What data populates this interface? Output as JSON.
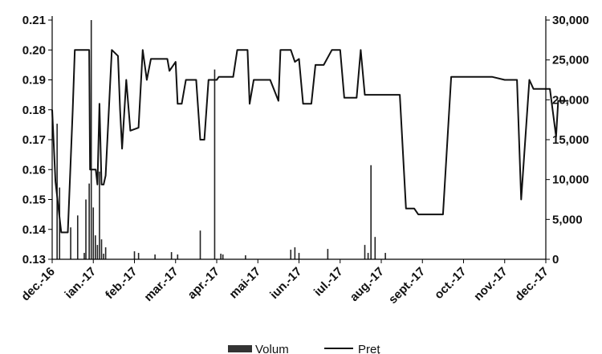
{
  "chart_data": {
    "type": "bar+line",
    "categories": [
      "dec.-16",
      "ian.-17",
      "feb.-17",
      "mar.-17",
      "apr.-17",
      "mai-17",
      "iun.-17",
      "iul.-17",
      "aug.-17",
      "sept.-17",
      "oct.-17",
      "nov.-17",
      "dec.-17"
    ],
    "y_left_ticks": [
      "0.21",
      "0.20",
      "0.19",
      "0.18",
      "0.17",
      "0.16",
      "0.15",
      "0.14",
      "0.13"
    ],
    "y_right_ticks": [
      "30,000",
      "25,000",
      "20,000",
      "15,000",
      "10,000",
      "5,000",
      "0"
    ],
    "ylim_left": [
      0.13,
      0.21
    ],
    "ylim_right": [
      0,
      30000
    ],
    "legend_position": "bottom",
    "colors": {
      "line": "#111111",
      "bars": "#222222",
      "axis": "#000000"
    },
    "series": [
      {
        "name": "Volum",
        "axis": "right",
        "kind": "bar",
        "points": [
          [
            0.12,
            17000
          ],
          [
            0.18,
            9000
          ],
          [
            0.45,
            4000
          ],
          [
            0.62,
            5500
          ],
          [
            0.78,
            800
          ],
          [
            0.82,
            7500
          ],
          [
            0.9,
            9500
          ],
          [
            0.95,
            30000
          ],
          [
            1.0,
            6500
          ],
          [
            1.05,
            3000
          ],
          [
            1.1,
            1800
          ],
          [
            1.15,
            11000
          ],
          [
            1.2,
            2500
          ],
          [
            1.25,
            700
          ],
          [
            1.3,
            1500
          ],
          [
            2.0,
            1000
          ],
          [
            2.1,
            800
          ],
          [
            2.5,
            600
          ],
          [
            2.9,
            900
          ],
          [
            3.05,
            600
          ],
          [
            3.6,
            3600
          ],
          [
            3.95,
            23800
          ],
          [
            4.1,
            700
          ],
          [
            4.15,
            600
          ],
          [
            4.7,
            500
          ],
          [
            5.8,
            1200
          ],
          [
            5.9,
            1500
          ],
          [
            6.0,
            800
          ],
          [
            6.7,
            1300
          ],
          [
            7.6,
            1800
          ],
          [
            7.68,
            800
          ],
          [
            7.75,
            11800
          ],
          [
            7.85,
            2800
          ],
          [
            8.1,
            800
          ]
        ]
      },
      {
        "name": "Preţ",
        "axis": "left",
        "kind": "line",
        "points": [
          [
            0.0,
            0.18
          ],
          [
            0.08,
            0.156
          ],
          [
            0.22,
            0.139
          ],
          [
            0.38,
            0.139
          ],
          [
            0.5,
            0.18
          ],
          [
            0.55,
            0.2
          ],
          [
            0.9,
            0.2
          ],
          [
            0.92,
            0.16
          ],
          [
            1.06,
            0.16
          ],
          [
            1.1,
            0.155
          ],
          [
            1.15,
            0.182
          ],
          [
            1.2,
            0.155
          ],
          [
            1.25,
            0.155
          ],
          [
            1.3,
            0.158
          ],
          [
            1.45,
            0.2
          ],
          [
            1.6,
            0.198
          ],
          [
            1.65,
            0.18
          ],
          [
            1.7,
            0.167
          ],
          [
            1.8,
            0.19
          ],
          [
            1.9,
            0.173
          ],
          [
            2.1,
            0.174
          ],
          [
            2.2,
            0.2
          ],
          [
            2.3,
            0.19
          ],
          [
            2.4,
            0.197
          ],
          [
            2.8,
            0.197
          ],
          [
            2.85,
            0.193
          ],
          [
            3.0,
            0.196
          ],
          [
            3.05,
            0.182
          ],
          [
            3.15,
            0.182
          ],
          [
            3.25,
            0.19
          ],
          [
            3.5,
            0.19
          ],
          [
            3.6,
            0.17
          ],
          [
            3.7,
            0.17
          ],
          [
            3.8,
            0.19
          ],
          [
            4.0,
            0.19
          ],
          [
            4.05,
            0.191
          ],
          [
            4.4,
            0.191
          ],
          [
            4.5,
            0.2
          ],
          [
            4.75,
            0.2
          ],
          [
            4.8,
            0.182
          ],
          [
            4.9,
            0.19
          ],
          [
            5.3,
            0.19
          ],
          [
            5.5,
            0.183
          ],
          [
            5.55,
            0.2
          ],
          [
            5.8,
            0.2
          ],
          [
            5.9,
            0.196
          ],
          [
            6.0,
            0.197
          ],
          [
            6.1,
            0.182
          ],
          [
            6.3,
            0.182
          ],
          [
            6.4,
            0.195
          ],
          [
            6.6,
            0.195
          ],
          [
            6.8,
            0.2
          ],
          [
            7.0,
            0.2
          ],
          [
            7.1,
            0.184
          ],
          [
            7.4,
            0.184
          ],
          [
            7.5,
            0.2
          ],
          [
            7.6,
            0.185
          ],
          [
            8.2,
            0.185
          ],
          [
            8.45,
            0.185
          ],
          [
            8.6,
            0.147
          ],
          [
            8.8,
            0.147
          ],
          [
            8.9,
            0.145
          ],
          [
            9.5,
            0.145
          ],
          [
            9.7,
            0.191
          ],
          [
            10.7,
            0.191
          ],
          [
            11.0,
            0.19
          ],
          [
            11.3,
            0.19
          ],
          [
            11.4,
            0.15
          ],
          [
            11.6,
            0.19
          ],
          [
            11.7,
            0.187
          ],
          [
            12.1,
            0.187
          ],
          [
            12.25,
            0.171
          ],
          [
            12.3,
            0.183
          ],
          [
            12.55,
            0.183
          ]
        ]
      }
    ]
  }
}
